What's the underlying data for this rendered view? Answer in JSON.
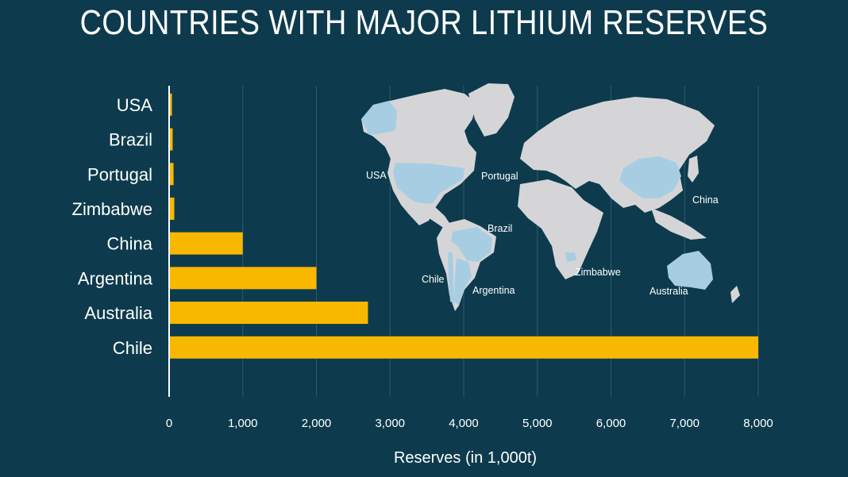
{
  "title": "COUNTRIES WITH MAJOR LITHIUM RESERVES",
  "colors": {
    "background": "#0d3b4d",
    "bar": "#f9b800",
    "land": "#d5d5d7",
    "highlight": "#a7cde3",
    "gridline": "#2f5a6a",
    "text": "#ffffff"
  },
  "chart_data": {
    "type": "bar",
    "orientation": "horizontal",
    "categories": [
      "USA",
      "Brazil",
      "Portugal",
      "Zimbabwe",
      "China",
      "Argentina",
      "Australia",
      "Chile"
    ],
    "values": [
      38,
      48,
      60,
      70,
      1000,
      2000,
      2700,
      8000
    ],
    "xlabel": "Reserves (in 1,000t)",
    "ylabel": "",
    "xlim": [
      0,
      8000
    ],
    "xticks": [
      "0",
      "1,000",
      "2,000",
      "3,000",
      "4,000",
      "5,000",
      "6,000",
      "7,000",
      "8,000"
    ],
    "grid": "vertical",
    "legend": "none"
  },
  "map": {
    "labels": [
      "USA",
      "Portugal",
      "China",
      "Brazil",
      "Chile",
      "Argentina",
      "Zimbabwe",
      "Australia"
    ]
  }
}
